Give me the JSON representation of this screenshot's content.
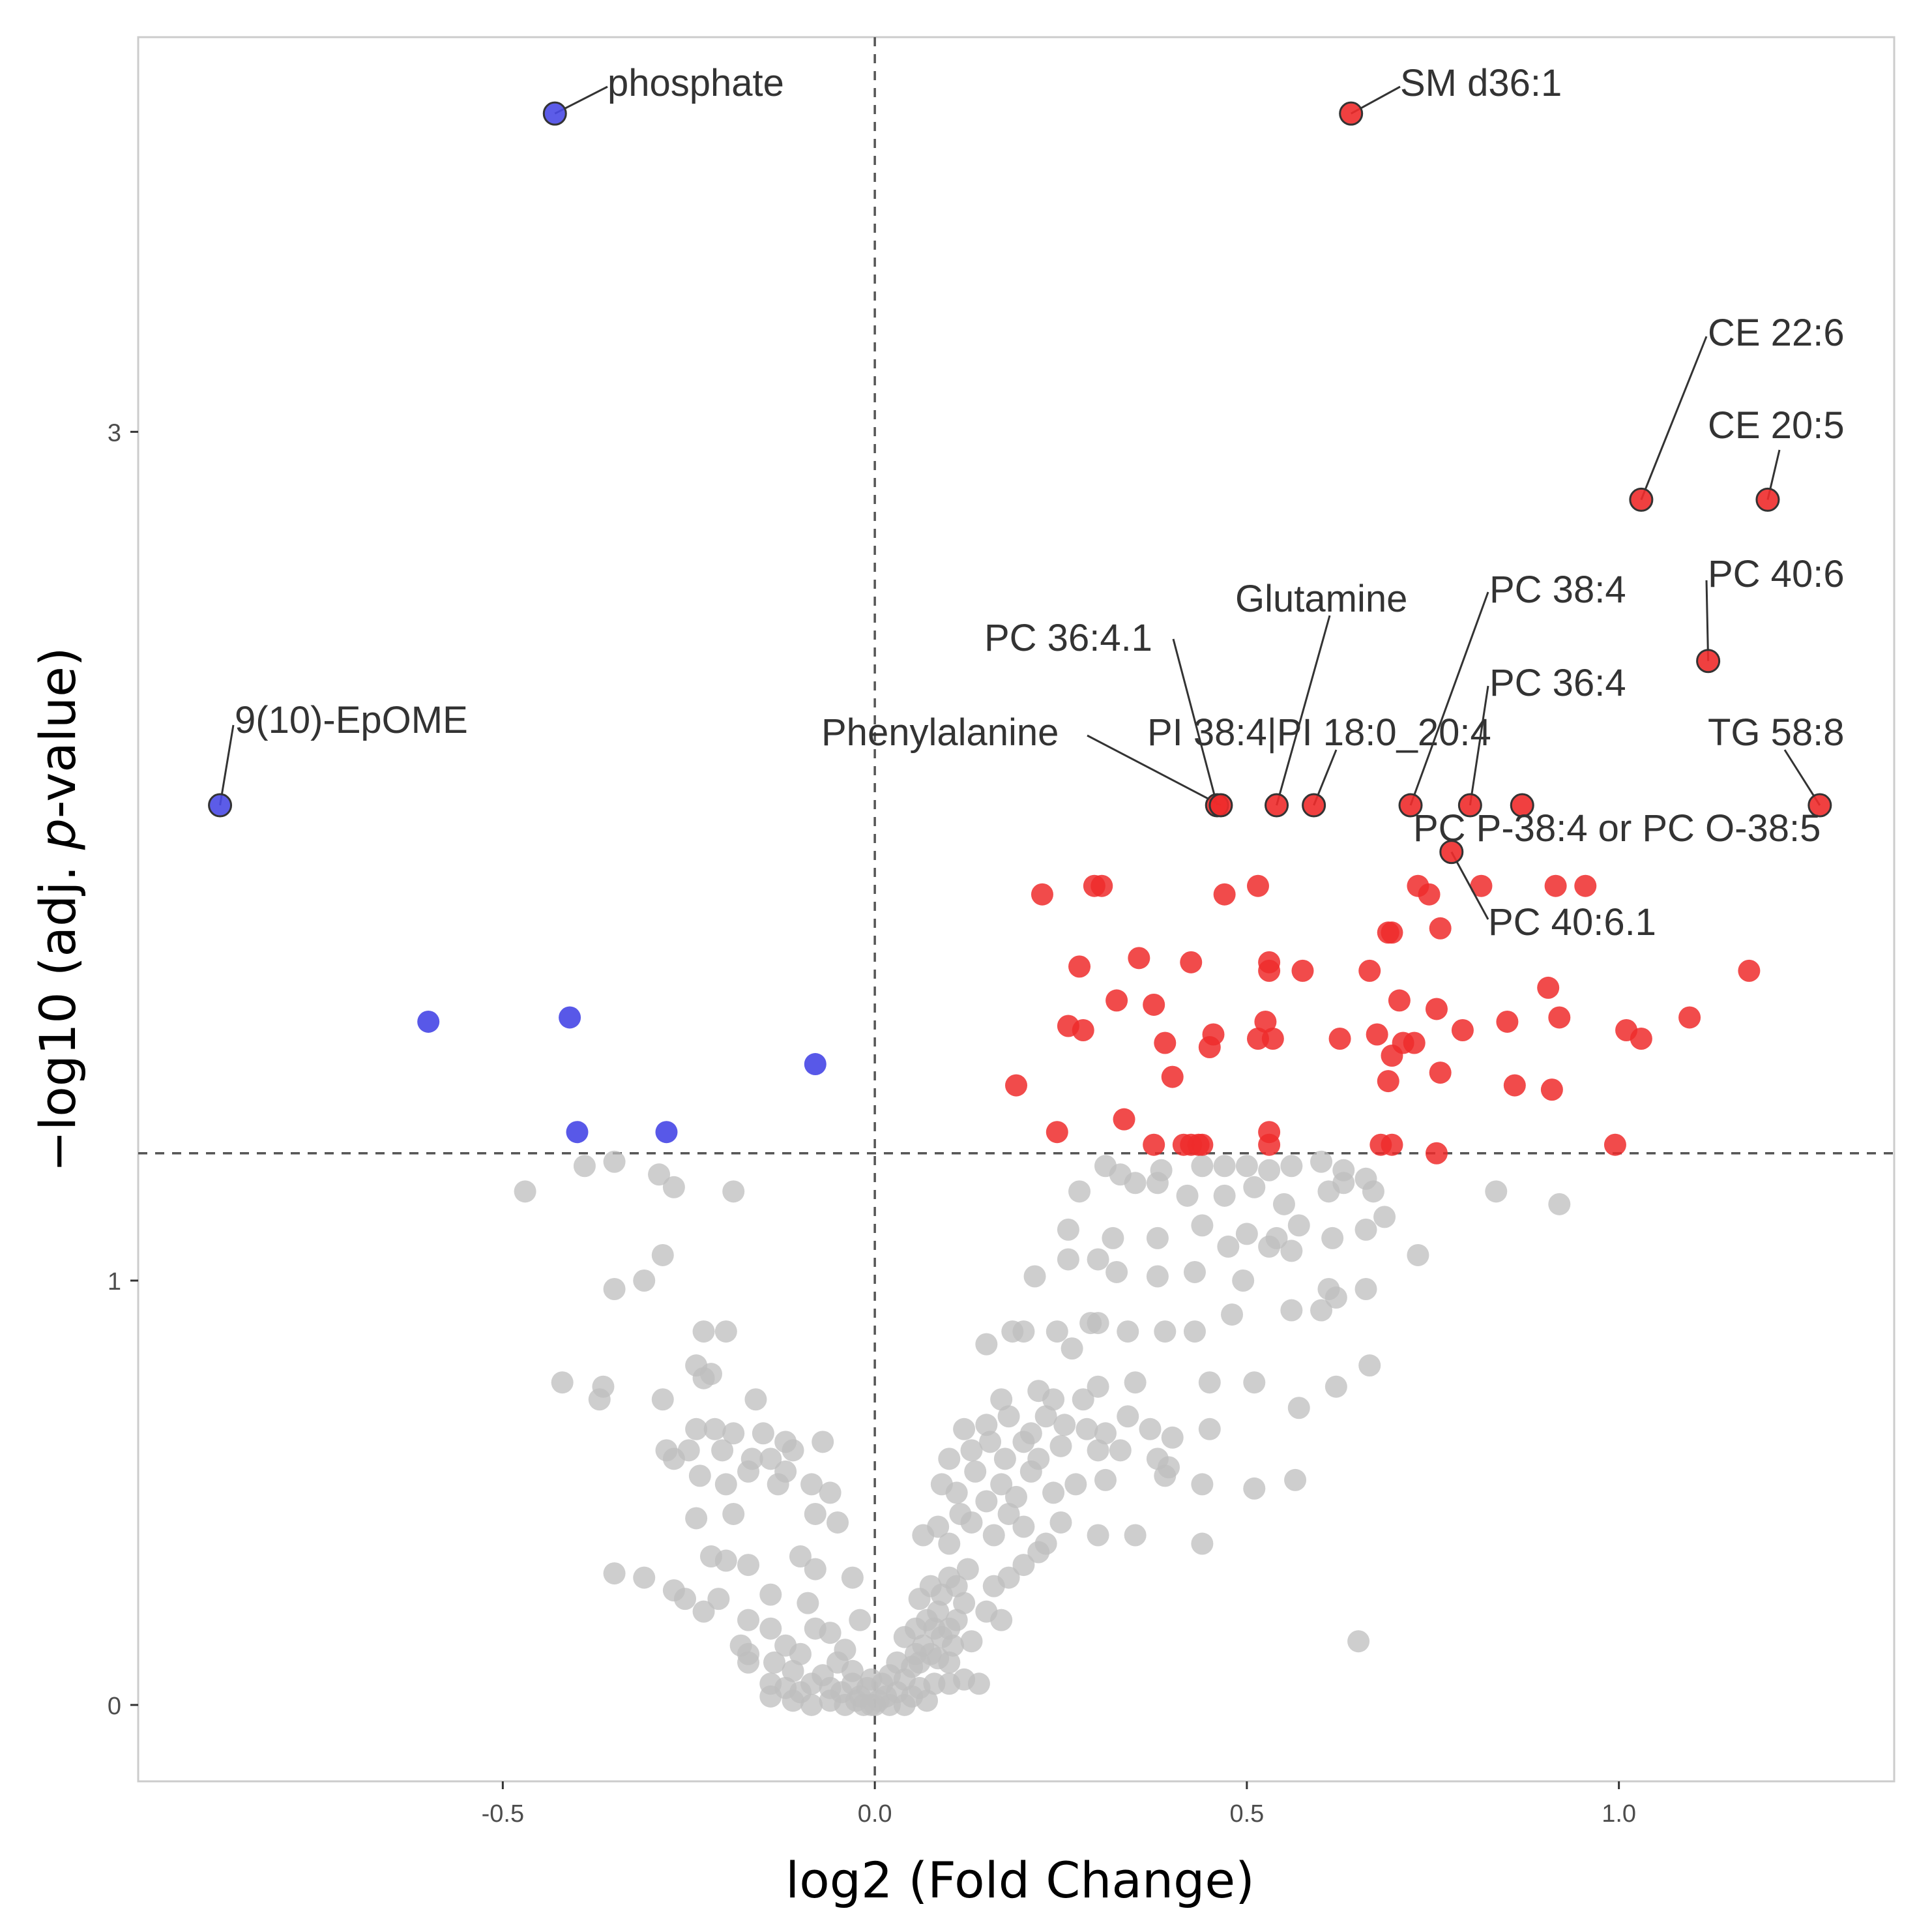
{
  "chart_data": {
    "type": "scatter",
    "xlabel": "log2 (Fold Change)",
    "ylabel_prefix": "−log10 (adj. ",
    "ylabel_italic": "p",
    "ylabel_suffix": "-value)",
    "xlim": [
      -0.99,
      1.37
    ],
    "ylim": [
      -0.18,
      3.93
    ],
    "x_ticks": [
      {
        "value": -0.5,
        "label": "-0.5"
      },
      {
        "value": 0.0,
        "label": "0.0"
      },
      {
        "value": 0.5,
        "label": "0.5"
      },
      {
        "value": 1.0,
        "label": "1.0"
      }
    ],
    "y_ticks": [
      {
        "value": 0,
        "label": "0"
      },
      {
        "value": 1,
        "label": "1"
      },
      {
        "value": 3,
        "label": "3"
      }
    ],
    "threshold_lines": {
      "x": 0.0,
      "y": 1.3
    },
    "colors": {
      "up": "#ee2b2b",
      "down": "#4a4ae6",
      "ns": "#bdbdbd",
      "guide": "#555555",
      "frame": "#cccccc"
    },
    "labeled_points": [
      {
        "name": "phosphate",
        "x": -0.43,
        "y": 3.75,
        "group": "down"
      },
      {
        "name": "SM d36:1",
        "x": 0.64,
        "y": 3.75,
        "group": "up"
      },
      {
        "name": "CE 22:6",
        "x": 1.03,
        "y": 2.84,
        "group": "up"
      },
      {
        "name": "CE 20:5",
        "x": 1.2,
        "y": 2.84,
        "group": "up"
      },
      {
        "name": "PC 40:6",
        "x": 1.12,
        "y": 2.46,
        "group": "up"
      },
      {
        "name": "9(10)-EpOME",
        "x": -0.88,
        "y": 2.12,
        "group": "down"
      },
      {
        "name": "PC 36:4.1",
        "x": 0.46,
        "y": 2.12,
        "group": "up"
      },
      {
        "name": "Phenylalanine",
        "x": 0.465,
        "y": 2.12,
        "group": "up"
      },
      {
        "name": "Glutamine",
        "x": 0.54,
        "y": 2.12,
        "group": "up"
      },
      {
        "name": "PI 38:4|PI 18:0_20:4",
        "x": 0.59,
        "y": 2.12,
        "group": "up"
      },
      {
        "name": "PC 38:4",
        "x": 0.72,
        "y": 2.12,
        "group": "up"
      },
      {
        "name": "PC 36:4",
        "x": 0.8,
        "y": 2.12,
        "group": "up"
      },
      {
        "name": "TG 58:8",
        "x": 1.27,
        "y": 2.12,
        "group": "up"
      },
      {
        "name": "PC P-38:4 or PC O-38:5",
        "x": 0.87,
        "y": 2.12,
        "group": "up"
      },
      {
        "name": "PC 40:6.1",
        "x": 0.775,
        "y": 2.01,
        "group": "up"
      }
    ],
    "significant_down": [
      {
        "x": -0.6,
        "y": 1.61
      },
      {
        "x": -0.41,
        "y": 1.62
      },
      {
        "x": -0.08,
        "y": 1.51
      },
      {
        "x": -0.4,
        "y": 1.35
      },
      {
        "x": -0.28,
        "y": 1.35
      }
    ],
    "significant_up": [
      [
        0.225,
        1.91
      ],
      [
        0.295,
        1.93
      ],
      [
        0.305,
        1.93
      ],
      [
        0.47,
        1.91
      ],
      [
        0.515,
        1.93
      ],
      [
        0.73,
        1.93
      ],
      [
        0.745,
        1.91
      ],
      [
        0.815,
        1.93
      ],
      [
        0.915,
        1.93
      ],
      [
        0.955,
        1.93
      ],
      [
        0.69,
        1.82
      ],
      [
        0.695,
        1.82
      ],
      [
        0.76,
        1.83
      ],
      [
        0.355,
        1.76
      ],
      [
        0.425,
        1.75
      ],
      [
        0.53,
        1.75
      ],
      [
        0.275,
        1.74
      ],
      [
        0.53,
        1.73
      ],
      [
        0.575,
        1.73
      ],
      [
        0.665,
        1.73
      ],
      [
        1.175,
        1.73
      ],
      [
        0.325,
        1.66
      ],
      [
        0.375,
        1.65
      ],
      [
        0.705,
        1.66
      ],
      [
        0.755,
        1.64
      ],
      [
        0.905,
        1.69
      ],
      [
        0.26,
        1.6
      ],
      [
        0.28,
        1.59
      ],
      [
        0.525,
        1.61
      ],
      [
        0.455,
        1.58
      ],
      [
        0.625,
        1.57
      ],
      [
        0.675,
        1.58
      ],
      [
        0.71,
        1.56
      ],
      [
        0.79,
        1.59
      ],
      [
        0.85,
        1.61
      ],
      [
        0.92,
        1.62
      ],
      [
        1.01,
        1.59
      ],
      [
        1.03,
        1.57
      ],
      [
        1.095,
        1.62
      ],
      [
        0.39,
        1.56
      ],
      [
        0.45,
        1.55
      ],
      [
        0.515,
        1.57
      ],
      [
        0.535,
        1.57
      ],
      [
        0.695,
        1.53
      ],
      [
        0.725,
        1.56
      ],
      [
        0.19,
        1.46
      ],
      [
        0.4,
        1.48
      ],
      [
        0.69,
        1.47
      ],
      [
        0.76,
        1.49
      ],
      [
        0.86,
        1.46
      ],
      [
        0.91,
        1.45
      ],
      [
        0.245,
        1.35
      ],
      [
        0.335,
        1.38
      ],
      [
        0.53,
        1.35
      ],
      [
        0.375,
        1.32
      ],
      [
        0.415,
        1.32
      ],
      [
        0.425,
        1.32
      ],
      [
        0.435,
        1.32
      ],
      [
        0.44,
        1.32
      ],
      [
        0.53,
        1.32
      ],
      [
        0.68,
        1.32
      ],
      [
        0.695,
        1.32
      ],
      [
        0.755,
        1.3
      ],
      [
        0.995,
        1.32
      ]
    ],
    "not_significant": [
      [
        -0.47,
        1.21
      ],
      [
        -0.39,
        1.27
      ],
      [
        -0.35,
        1.28
      ],
      [
        -0.29,
        1.25
      ],
      [
        -0.27,
        1.22
      ],
      [
        -0.19,
        1.21
      ],
      [
        -0.35,
        0.98
      ],
      [
        -0.31,
        1.0
      ],
      [
        -0.285,
        1.06
      ],
      [
        -0.23,
        0.88
      ],
      [
        -0.2,
        0.88
      ],
      [
        -0.42,
        0.76
      ],
      [
        -0.365,
        0.75
      ],
      [
        -0.37,
        0.72
      ],
      [
        -0.24,
        0.8
      ],
      [
        -0.23,
        0.77
      ],
      [
        -0.22,
        0.78
      ],
      [
        -0.285,
        0.72
      ],
      [
        -0.16,
        0.72
      ],
      [
        -0.24,
        0.65
      ],
      [
        -0.215,
        0.65
      ],
      [
        -0.19,
        0.64
      ],
      [
        -0.15,
        0.64
      ],
      [
        -0.07,
        0.62
      ],
      [
        -0.12,
        0.62
      ],
      [
        -0.28,
        0.6
      ],
      [
        -0.205,
        0.6
      ],
      [
        -0.25,
        0.6
      ],
      [
        -0.11,
        0.6
      ],
      [
        -0.27,
        0.58
      ],
      [
        -0.165,
        0.58
      ],
      [
        -0.14,
        0.58
      ],
      [
        -0.235,
        0.54
      ],
      [
        -0.17,
        0.55
      ],
      [
        -0.12,
        0.55
      ],
      [
        -0.2,
        0.52
      ],
      [
        -0.13,
        0.52
      ],
      [
        -0.085,
        0.52
      ],
      [
        -0.06,
        0.5
      ],
      [
        -0.24,
        0.44
      ],
      [
        -0.19,
        0.45
      ],
      [
        -0.08,
        0.45
      ],
      [
        -0.05,
        0.43
      ],
      [
        -0.22,
        0.35
      ],
      [
        -0.2,
        0.34
      ],
      [
        -0.17,
        0.33
      ],
      [
        -0.1,
        0.35
      ],
      [
        -0.08,
        0.32
      ],
      [
        -0.03,
        0.3
      ],
      [
        -0.35,
        0.31
      ],
      [
        -0.31,
        0.3
      ],
      [
        -0.27,
        0.27
      ],
      [
        -0.255,
        0.25
      ],
      [
        -0.21,
        0.25
      ],
      [
        -0.14,
        0.26
      ],
      [
        -0.09,
        0.24
      ],
      [
        -0.23,
        0.22
      ],
      [
        -0.17,
        0.2
      ],
      [
        -0.14,
        0.18
      ],
      [
        -0.08,
        0.18
      ],
      [
        -0.06,
        0.17
      ],
      [
        -0.02,
        0.2
      ],
      [
        -0.18,
        0.14
      ],
      [
        -0.1,
        0.12
      ],
      [
        -0.04,
        0.13
      ],
      [
        -0.17,
        0.12
      ],
      [
        -0.12,
        0.14
      ],
      [
        -0.17,
        0.1
      ],
      [
        -0.135,
        0.1
      ],
      [
        -0.11,
        0.08
      ],
      [
        -0.07,
        0.07
      ],
      [
        -0.05,
        0.1
      ],
      [
        -0.03,
        0.08
      ],
      [
        -0.005,
        0.06
      ],
      [
        -0.14,
        0.05
      ],
      [
        -0.12,
        0.04
      ],
      [
        -0.1,
        0.03
      ],
      [
        -0.085,
        0.05
      ],
      [
        -0.06,
        0.04
      ],
      [
        -0.045,
        0.03
      ],
      [
        -0.03,
        0.05
      ],
      [
        -0.02,
        0.02
      ],
      [
        -0.01,
        0.04
      ],
      [
        -0.14,
        0.02
      ],
      [
        -0.11,
        0.01
      ],
      [
        -0.085,
        0.0
      ],
      [
        -0.06,
        0.01
      ],
      [
        -0.04,
        0.0
      ],
      [
        -0.025,
        0.01
      ],
      [
        -0.015,
        0.0
      ],
      [
        -0.005,
        0.0
      ],
      [
        0.0,
        0.0
      ],
      [
        0.005,
        0.01
      ],
      [
        0.015,
        0.02
      ],
      [
        0.02,
        0.0
      ],
      [
        0.03,
        0.03
      ],
      [
        0.04,
        0.0
      ],
      [
        0.05,
        0.02
      ],
      [
        0.06,
        0.04
      ],
      [
        0.07,
        0.01
      ],
      [
        0.08,
        0.05
      ],
      [
        0.1,
        0.05
      ],
      [
        0.12,
        0.06
      ],
      [
        0.14,
        0.05
      ],
      [
        0.01,
        0.05
      ],
      [
        0.02,
        0.07
      ],
      [
        0.03,
        0.1
      ],
      [
        0.04,
        0.06
      ],
      [
        0.05,
        0.09
      ],
      [
        0.055,
        0.12
      ],
      [
        0.06,
        0.1
      ],
      [
        0.065,
        0.14
      ],
      [
        0.075,
        0.12
      ],
      [
        0.085,
        0.11
      ],
      [
        0.1,
        0.1
      ],
      [
        0.105,
        0.14
      ],
      [
        0.04,
        0.16
      ],
      [
        0.055,
        0.18
      ],
      [
        0.07,
        0.2
      ],
      [
        0.08,
        0.18
      ],
      [
        0.085,
        0.22
      ],
      [
        0.09,
        0.16
      ],
      [
        0.1,
        0.18
      ],
      [
        0.11,
        0.2
      ],
      [
        0.12,
        0.24
      ],
      [
        0.13,
        0.15
      ],
      [
        0.15,
        0.22
      ],
      [
        0.17,
        0.2
      ],
      [
        0.06,
        0.25
      ],
      [
        0.075,
        0.28
      ],
      [
        0.09,
        0.26
      ],
      [
        0.1,
        0.3
      ],
      [
        0.11,
        0.28
      ],
      [
        0.125,
        0.32
      ],
      [
        0.16,
        0.28
      ],
      [
        0.18,
        0.3
      ],
      [
        0.2,
        0.33
      ],
      [
        0.22,
        0.36
      ],
      [
        0.065,
        0.4
      ],
      [
        0.085,
        0.42
      ],
      [
        0.1,
        0.38
      ],
      [
        0.115,
        0.45
      ],
      [
        0.13,
        0.43
      ],
      [
        0.16,
        0.4
      ],
      [
        0.18,
        0.45
      ],
      [
        0.2,
        0.42
      ],
      [
        0.23,
        0.38
      ],
      [
        0.25,
        0.43
      ],
      [
        0.3,
        0.4
      ],
      [
        0.35,
        0.4
      ],
      [
        0.44,
        0.38
      ],
      [
        0.09,
        0.52
      ],
      [
        0.11,
        0.5
      ],
      [
        0.135,
        0.55
      ],
      [
        0.15,
        0.48
      ],
      [
        0.17,
        0.52
      ],
      [
        0.19,
        0.49
      ],
      [
        0.21,
        0.55
      ],
      [
        0.24,
        0.5
      ],
      [
        0.27,
        0.52
      ],
      [
        0.31,
        0.53
      ],
      [
        0.39,
        0.54
      ],
      [
        0.44,
        0.52
      ],
      [
        0.51,
        0.51
      ],
      [
        0.565,
        0.53
      ],
      [
        0.1,
        0.58
      ],
      [
        0.13,
        0.6
      ],
      [
        0.155,
        0.62
      ],
      [
        0.175,
        0.58
      ],
      [
        0.2,
        0.62
      ],
      [
        0.22,
        0.58
      ],
      [
        0.25,
        0.61
      ],
      [
        0.3,
        0.6
      ],
      [
        0.33,
        0.6
      ],
      [
        0.38,
        0.58
      ],
      [
        0.395,
        0.56
      ],
      [
        0.12,
        0.65
      ],
      [
        0.15,
        0.66
      ],
      [
        0.18,
        0.68
      ],
      [
        0.21,
        0.64
      ],
      [
        0.23,
        0.68
      ],
      [
        0.255,
        0.66
      ],
      [
        0.285,
        0.65
      ],
      [
        0.31,
        0.64
      ],
      [
        0.34,
        0.68
      ],
      [
        0.37,
        0.65
      ],
      [
        0.4,
        0.63
      ],
      [
        0.45,
        0.65
      ],
      [
        0.17,
        0.72
      ],
      [
        0.22,
        0.74
      ],
      [
        0.24,
        0.72
      ],
      [
        0.28,
        0.72
      ],
      [
        0.3,
        0.75
      ],
      [
        0.35,
        0.76
      ],
      [
        0.45,
        0.76
      ],
      [
        0.51,
        0.76
      ],
      [
        0.57,
        0.7
      ],
      [
        0.62,
        0.75
      ],
      [
        0.665,
        0.8
      ],
      [
        0.15,
        0.85
      ],
      [
        0.185,
        0.88
      ],
      [
        0.2,
        0.88
      ],
      [
        0.245,
        0.88
      ],
      [
        0.265,
        0.84
      ],
      [
        0.29,
        0.9
      ],
      [
        0.3,
        0.9
      ],
      [
        0.34,
        0.88
      ],
      [
        0.39,
        0.88
      ],
      [
        0.43,
        0.88
      ],
      [
        0.48,
        0.92
      ],
      [
        0.56,
        0.93
      ],
      [
        0.6,
        0.93
      ],
      [
        0.215,
        1.01
      ],
      [
        0.26,
        1.05
      ],
      [
        0.3,
        1.05
      ],
      [
        0.325,
        1.02
      ],
      [
        0.38,
        1.01
      ],
      [
        0.43,
        1.02
      ],
      [
        0.495,
        1.0
      ],
      [
        0.54,
        1.1
      ],
      [
        0.56,
        1.07
      ],
      [
        0.61,
        0.98
      ],
      [
        0.62,
        0.96
      ],
      [
        0.66,
        0.98
      ],
      [
        0.26,
        1.12
      ],
      [
        0.32,
        1.1
      ],
      [
        0.38,
        1.1
      ],
      [
        0.44,
        1.13
      ],
      [
        0.475,
        1.08
      ],
      [
        0.5,
        1.11
      ],
      [
        0.53,
        1.08
      ],
      [
        0.57,
        1.13
      ],
      [
        0.615,
        1.1
      ],
      [
        0.66,
        1.12
      ],
      [
        0.685,
        1.15
      ],
      [
        0.275,
        1.21
      ],
      [
        0.35,
        1.23
      ],
      [
        0.38,
        1.23
      ],
      [
        0.42,
        1.2
      ],
      [
        0.47,
        1.2
      ],
      [
        0.51,
        1.22
      ],
      [
        0.55,
        1.18
      ],
      [
        0.61,
        1.21
      ],
      [
        0.63,
        1.23
      ],
      [
        0.67,
        1.21
      ],
      [
        0.835,
        1.21
      ],
      [
        0.92,
        1.18
      ],
      [
        0.31,
        1.27
      ],
      [
        0.33,
        1.25
      ],
      [
        0.385,
        1.26
      ],
      [
        0.44,
        1.27
      ],
      [
        0.47,
        1.27
      ],
      [
        0.5,
        1.27
      ],
      [
        0.53,
        1.26
      ],
      [
        0.56,
        1.27
      ],
      [
        0.6,
        1.28
      ],
      [
        0.63,
        1.26
      ],
      [
        0.66,
        1.24
      ],
      [
        0.73,
        1.06
      ],
      [
        0.65,
        0.15
      ]
    ]
  }
}
